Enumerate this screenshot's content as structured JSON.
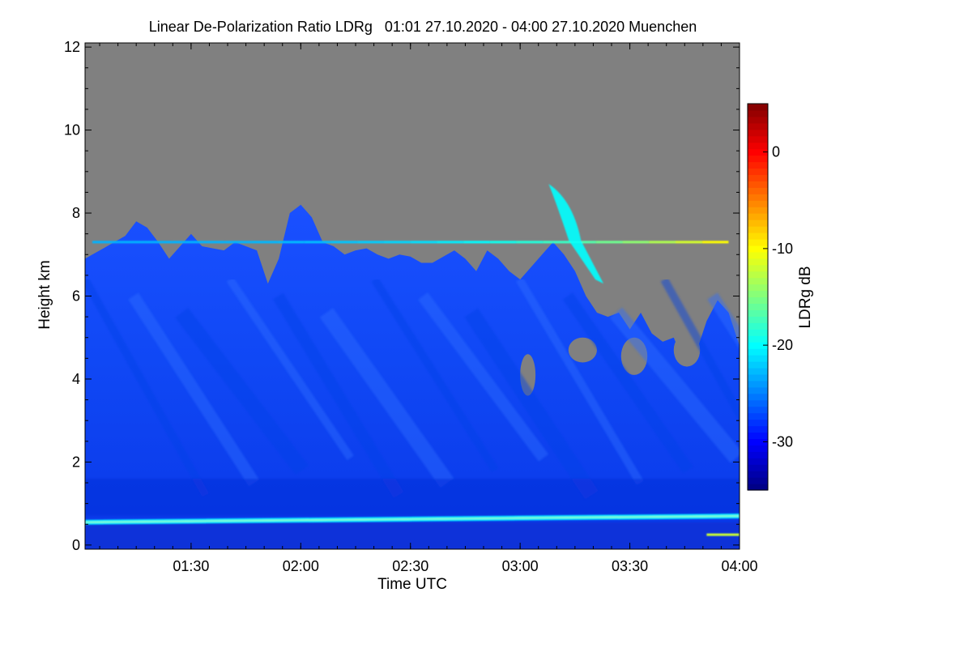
{
  "chart_data": {
    "type": "heatmap",
    "title": "Linear De-Polarization Ratio LDRg   01:01 27.10.2020 - 04:00 27.10.2020 Muenchen",
    "xlabel": "Time UTC",
    "ylabel": "Height km",
    "xlim_hours": [
      1.0167,
      4.0
    ],
    "ylim_km": [
      -0.1,
      12.1
    ],
    "x_ticks": [
      {
        "label": "01:30",
        "value": 1.5
      },
      {
        "label": "02:00",
        "value": 2.0
      },
      {
        "label": "02:30",
        "value": 2.5
      },
      {
        "label": "03:00",
        "value": 3.0
      },
      {
        "label": "03:30",
        "value": 3.5
      },
      {
        "label": "04:00",
        "value": 4.0
      }
    ],
    "y_ticks": [
      {
        "label": "0",
        "value": 0
      },
      {
        "label": "2",
        "value": 2
      },
      {
        "label": "4",
        "value": 4
      },
      {
        "label": "6",
        "value": 6
      },
      {
        "label": "8",
        "value": 8
      },
      {
        "label": "10",
        "value": 10
      },
      {
        "label": "12",
        "value": 12
      }
    ],
    "colorbar": {
      "label": "LDRg dB",
      "range_db": [
        -35,
        5
      ],
      "ticks": [
        {
          "label": "0",
          "value": 0
        },
        {
          "label": "-10",
          "value": -10
        },
        {
          "label": "-20",
          "value": -20
        },
        {
          "label": "-30",
          "value": -30
        }
      ],
      "colormap": [
        "#00007f",
        "#0000ff",
        "#007fff",
        "#00ffff",
        "#7fff7f",
        "#ffff00",
        "#ff7f00",
        "#ff0000",
        "#7f0000"
      ]
    },
    "no_signal_color": "#808080",
    "features": {
      "cloud_top_km": [
        [
          1.0167,
          6.9
        ],
        [
          1.05,
          7.0
        ],
        [
          1.1,
          7.15
        ],
        [
          1.15,
          7.3
        ],
        [
          1.2,
          7.45
        ],
        [
          1.25,
          7.8
        ],
        [
          1.3,
          7.65
        ],
        [
          1.35,
          7.3
        ],
        [
          1.4,
          6.9
        ],
        [
          1.45,
          7.2
        ],
        [
          1.5,
          7.5
        ],
        [
          1.55,
          7.2
        ],
        [
          1.6,
          7.15
        ],
        [
          1.65,
          7.1
        ],
        [
          1.7,
          7.3
        ],
        [
          1.75,
          7.2
        ],
        [
          1.8,
          7.1
        ],
        [
          1.85,
          6.3
        ],
        [
          1.9,
          6.9
        ],
        [
          1.95,
          8.0
        ],
        [
          2.0,
          8.2
        ],
        [
          2.05,
          7.9
        ],
        [
          2.1,
          7.3
        ],
        [
          2.15,
          7.2
        ],
        [
          2.2,
          7.0
        ],
        [
          2.25,
          7.1
        ],
        [
          2.3,
          7.15
        ],
        [
          2.35,
          7.0
        ],
        [
          2.4,
          6.9
        ],
        [
          2.45,
          7.0
        ],
        [
          2.5,
          6.95
        ],
        [
          2.55,
          6.8
        ],
        [
          2.6,
          6.8
        ],
        [
          2.65,
          6.95
        ],
        [
          2.7,
          7.1
        ],
        [
          2.75,
          6.9
        ],
        [
          2.8,
          6.6
        ],
        [
          2.85,
          7.1
        ],
        [
          2.9,
          6.9
        ],
        [
          2.95,
          6.6
        ],
        [
          3.0,
          6.4
        ],
        [
          3.05,
          6.7
        ],
        [
          3.1,
          7.0
        ],
        [
          3.15,
          7.3
        ],
        [
          3.2,
          7.0
        ],
        [
          3.25,
          6.6
        ],
        [
          3.3,
          6.0
        ],
        [
          3.35,
          5.6
        ],
        [
          3.4,
          5.5
        ],
        [
          3.45,
          5.6
        ],
        [
          3.5,
          5.2
        ],
        [
          3.55,
          5.6
        ],
        [
          3.6,
          5.1
        ],
        [
          3.65,
          4.9
        ],
        [
          3.7,
          5.0
        ],
        [
          3.75,
          4.4
        ],
        [
          3.8,
          4.6
        ],
        [
          3.85,
          5.4
        ],
        [
          3.9,
          5.9
        ],
        [
          3.95,
          5.6
        ],
        [
          4.0,
          4.8
        ]
      ],
      "cloud_holes": [
        {
          "t0": 3.0,
          "t1": 3.07,
          "h0": 3.6,
          "h1": 4.6
        },
        {
          "t0": 3.22,
          "t1": 3.35,
          "h0": 4.4,
          "h1": 5.0
        },
        {
          "t0": 3.46,
          "t1": 3.58,
          "h0": 4.1,
          "h1": 5.0
        },
        {
          "t0": 3.7,
          "t1": 3.82,
          "h0": 4.3,
          "h1": 5.1
        }
      ],
      "aerosol_layer": {
        "height_km_start": 0.55,
        "height_km_end": 0.7,
        "ldr_db": -21
      },
      "stratified_layer": {
        "height_km": 7.3,
        "t0": 1.05,
        "t1": 3.95,
        "ldr_db_start": -23,
        "ldr_db_end": -10
      },
      "ice_fallstreak": {
        "t0": 3.13,
        "t1": 3.38,
        "h_top_km": 8.7,
        "h_bottom_km": 6.3,
        "ldr_db": -20
      },
      "near_surface_layer": {
        "t0": 3.85,
        "t1": 4.0,
        "height_km": 0.25,
        "ldr_db": -12
      },
      "background_ldr_db": -29
    }
  }
}
